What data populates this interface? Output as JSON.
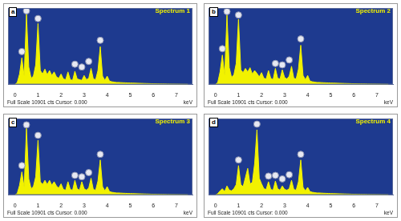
{
  "chart_data": [
    {
      "type": "line",
      "panel_label": "a",
      "title": "Spectrum 1",
      "x_label": "keV",
      "footer": "Full Scale 10901 cts Cursor: 0.000",
      "color": "#f2f200",
      "grid": false,
      "tick_labels": "x",
      "marker": "circle",
      "xlim": [
        -0.3,
        7.7
      ],
      "xticks": [
        0,
        1,
        2,
        3,
        4,
        5,
        6,
        7
      ],
      "ylim": [
        0,
        10901
      ],
      "x": [
        0,
        0.1,
        0.2,
        0.3,
        0.4,
        0.5,
        0.6,
        0.7,
        0.8,
        0.9,
        1.0,
        1.1,
        1.2,
        1.3,
        1.4,
        1.5,
        1.6,
        1.7,
        1.8,
        1.9,
        2.0,
        2.1,
        2.2,
        2.3,
        2.4,
        2.5,
        2.6,
        2.7,
        2.8,
        2.9,
        3.0,
        3.1,
        3.2,
        3.3,
        3.4,
        3.5,
        3.6,
        3.7,
        3.8,
        3.9,
        4.0,
        4.1,
        4.2,
        4.3,
        4.4,
        4.5,
        4.6,
        4.7,
        4.8,
        4.9,
        5.0,
        5.1,
        5.2,
        5.3,
        5.4,
        5.5,
        5.6,
        5.7,
        5.8,
        5.9,
        6.0,
        6.1,
        6.2,
        6.3,
        6.4,
        6.5,
        6.6,
        6.7,
        6.8,
        6.9,
        7.0,
        7.1,
        7.2,
        7.3,
        7.4,
        7.5
      ],
      "values": [
        0,
        300,
        1500,
        3800,
        1200,
        10000,
        2500,
        900,
        1200,
        2800,
        8700,
        2000,
        1500,
        2200,
        1400,
        2000,
        1300,
        1800,
        1100,
        900,
        1500,
        800,
        700,
        1800,
        700,
        600,
        1900,
        800,
        700,
        600,
        1300,
        700,
        900,
        2300,
        800,
        700,
        2000,
        5400,
        1200,
        600,
        1200,
        500,
        400,
        350,
        300,
        300,
        280,
        260,
        250,
        230,
        220,
        210,
        200,
        190,
        180,
        170,
        160,
        150,
        140,
        130,
        120,
        110,
        100,
        95,
        90,
        85,
        80,
        75,
        70,
        65,
        60,
        55,
        50,
        45,
        40,
        35
      ],
      "markers": {
        "color": "#e6e8f2",
        "x": [
          0.3,
          0.5,
          1.0,
          2.6,
          2.9,
          3.2,
          3.7
        ],
        "values": [
          4700,
          10500,
          9400,
          2900,
          2500,
          3300,
          6300
        ]
      }
    },
    {
      "type": "line",
      "panel_label": "b",
      "title": "Spectrum 2",
      "x_label": "keV",
      "footer": "Full Scale 10901 cts Cursor: 0.000",
      "color": "#f2f200",
      "grid": false,
      "tick_labels": "x",
      "marker": "circle",
      "xlim": [
        -0.3,
        7.7
      ],
      "xticks": [
        0,
        1,
        2,
        3,
        4,
        5,
        6,
        7
      ],
      "ylim": [
        0,
        10901
      ],
      "x": [
        0,
        0.1,
        0.2,
        0.3,
        0.4,
        0.5,
        0.6,
        0.7,
        0.8,
        0.9,
        1.0,
        1.1,
        1.2,
        1.3,
        1.4,
        1.5,
        1.6,
        1.7,
        1.8,
        1.9,
        2.0,
        2.1,
        2.2,
        2.3,
        2.4,
        2.5,
        2.6,
        2.7,
        2.8,
        2.9,
        3.0,
        3.1,
        3.2,
        3.3,
        3.4,
        3.5,
        3.6,
        3.7,
        3.8,
        3.9,
        4.0,
        4.1,
        4.2,
        4.3,
        4.4,
        4.5,
        4.6,
        4.7,
        4.8,
        4.9,
        5.0,
        5.1,
        5.2,
        5.3,
        5.4,
        5.5,
        5.6,
        5.7,
        5.8,
        5.9,
        6.0,
        6.1,
        6.2,
        6.3,
        6.4,
        6.5,
        6.6,
        6.7,
        6.8,
        6.9,
        7.0,
        7.1,
        7.2,
        7.3,
        7.4,
        7.5
      ],
      "values": [
        0,
        300,
        1800,
        4200,
        1300,
        9900,
        2400,
        1000,
        1400,
        3000,
        9300,
        2100,
        1700,
        2300,
        1800,
        2400,
        1500,
        2000,
        1600,
        1100,
        1700,
        900,
        800,
        2000,
        900,
        700,
        2300,
        900,
        800,
        2100,
        1000,
        800,
        1200,
        2600,
        900,
        800,
        2200,
        5600,
        1300,
        700,
        1300,
        500,
        400,
        350,
        300,
        300,
        280,
        260,
        250,
        230,
        220,
        210,
        200,
        190,
        180,
        170,
        160,
        150,
        140,
        130,
        120,
        110,
        100,
        95,
        90,
        85,
        80,
        75,
        70,
        65,
        60,
        55,
        50,
        45,
        40,
        35
      ],
      "markers": {
        "color": "#e6e8f2",
        "x": [
          0.3,
          0.5,
          1.0,
          2.6,
          2.9,
          3.2,
          3.7
        ],
        "values": [
          5100,
          10400,
          9900,
          3000,
          2800,
          3500,
          6500
        ]
      }
    },
    {
      "type": "line",
      "panel_label": "c",
      "title": "Spectrum 3",
      "x_label": "keV",
      "footer": "Full Scale 10901 cts Cursor: 0.000",
      "color": "#f2f200",
      "grid": false,
      "tick_labels": "x",
      "marker": "circle",
      "xlim": [
        -0.3,
        7.7
      ],
      "xticks": [
        0,
        1,
        2,
        3,
        4,
        5,
        6,
        7
      ],
      "ylim": [
        0,
        10901
      ],
      "x": [
        0,
        0.1,
        0.2,
        0.3,
        0.4,
        0.5,
        0.6,
        0.7,
        0.8,
        0.9,
        1.0,
        1.1,
        1.2,
        1.3,
        1.4,
        1.5,
        1.6,
        1.7,
        1.8,
        1.9,
        2.0,
        2.1,
        2.2,
        2.3,
        2.4,
        2.5,
        2.6,
        2.7,
        2.8,
        2.9,
        3.0,
        3.1,
        3.2,
        3.3,
        3.4,
        3.5,
        3.6,
        3.7,
        3.8,
        3.9,
        4.0,
        4.1,
        4.2,
        4.3,
        4.4,
        4.5,
        4.6,
        4.7,
        4.8,
        4.9,
        5.0,
        5.1,
        5.2,
        5.3,
        5.4,
        5.5,
        5.6,
        5.7,
        5.8,
        5.9,
        6.0,
        6.1,
        6.2,
        6.3,
        6.4,
        6.5,
        6.6,
        6.7,
        6.8,
        6.9,
        7.0,
        7.1,
        7.2,
        7.3,
        7.4,
        7.5
      ],
      "values": [
        0,
        250,
        1400,
        3300,
        1100,
        9500,
        2300,
        900,
        1200,
        2600,
        7800,
        1900,
        1500,
        2100,
        1500,
        2100,
        1400,
        1900,
        1300,
        1000,
        1600,
        800,
        700,
        1900,
        800,
        700,
        2100,
        900,
        700,
        1900,
        900,
        700,
        1000,
        2400,
        800,
        700,
        2000,
        5000,
        1200,
        600,
        1200,
        500,
        400,
        350,
        300,
        300,
        280,
        260,
        250,
        230,
        220,
        210,
        200,
        190,
        180,
        170,
        160,
        150,
        140,
        130,
        120,
        110,
        100,
        95,
        90,
        85,
        80,
        75,
        70,
        65,
        60,
        55,
        50,
        45,
        40,
        35
      ],
      "markers": {
        "color": "#e6e8f2",
        "x": [
          0.3,
          0.5,
          1.0,
          2.6,
          2.9,
          3.2,
          3.7
        ],
        "values": [
          4200,
          10000,
          8500,
          2800,
          2600,
          3200,
          5800
        ]
      }
    },
    {
      "type": "line",
      "panel_label": "d",
      "title": "Spectrum 4",
      "x_label": "keV",
      "footer": "Full Scale 10901 cts Cursor: 0.000",
      "color": "#f2f200",
      "grid": false,
      "tick_labels": "x",
      "marker": "circle",
      "xlim": [
        -0.3,
        7.7
      ],
      "xticks": [
        0,
        1,
        2,
        3,
        4,
        5,
        6,
        7
      ],
      "ylim": [
        0,
        10901
      ],
      "x": [
        0,
        0.1,
        0.2,
        0.3,
        0.4,
        0.5,
        0.6,
        0.7,
        0.8,
        0.9,
        1.0,
        1.1,
        1.2,
        1.3,
        1.4,
        1.5,
        1.6,
        1.7,
        1.8,
        1.9,
        2.0,
        2.1,
        2.2,
        2.3,
        2.4,
        2.5,
        2.6,
        2.7,
        2.8,
        2.9,
        3.0,
        3.1,
        3.2,
        3.3,
        3.4,
        3.5,
        3.6,
        3.7,
        3.8,
        3.9,
        4.0,
        4.1,
        4.2,
        4.3,
        4.4,
        4.5,
        4.6,
        4.7,
        4.8,
        4.9,
        5.0,
        5.1,
        5.2,
        5.3,
        5.4,
        5.5,
        5.6,
        5.7,
        5.8,
        5.9,
        6.0,
        6.1,
        6.2,
        6.3,
        6.4,
        6.5,
        6.6,
        6.7,
        6.8,
        6.9,
        7.0,
        7.1,
        7.2,
        7.3,
        7.4,
        7.5
      ],
      "values": [
        0,
        200,
        600,
        900,
        500,
        1300,
        700,
        600,
        900,
        1500,
        4200,
        1500,
        1200,
        2500,
        3800,
        1600,
        1800,
        4500,
        9300,
        2400,
        1600,
        900,
        800,
        1900,
        800,
        700,
        2000,
        900,
        700,
        1300,
        800,
        700,
        900,
        2100,
        800,
        700,
        1900,
        5000,
        1100,
        600,
        1100,
        500,
        400,
        350,
        300,
        300,
        280,
        260,
        250,
        230,
        220,
        210,
        200,
        190,
        180,
        170,
        160,
        150,
        140,
        130,
        120,
        110,
        100,
        95,
        90,
        85,
        80,
        75,
        70,
        65,
        60,
        55,
        50,
        45,
        40,
        35
      ],
      "markers": {
        "color": "#e6e8f2",
        "x": [
          1.0,
          1.8,
          2.3,
          2.6,
          2.9,
          3.2,
          3.7
        ],
        "values": [
          5000,
          10100,
          2700,
          2800,
          2300,
          2900,
          5800
        ]
      }
    }
  ]
}
